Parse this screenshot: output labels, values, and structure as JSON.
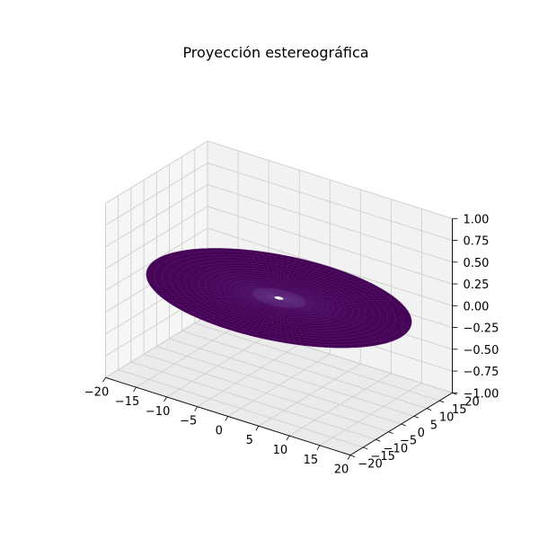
{
  "chart_data": {
    "type": "surface3d",
    "title": "Proyección estereográfica",
    "xlabel": "",
    "ylabel": "",
    "zlabel": "",
    "xlim": [
      -20,
      20
    ],
    "ylim": [
      -20,
      20
    ],
    "zlim": [
      -1,
      1
    ],
    "x_ticks": [
      -20,
      -15,
      -10,
      -5,
      0,
      5,
      10,
      15,
      20
    ],
    "y_ticks": [
      -20,
      -15,
      -10,
      -5,
      0,
      5,
      10,
      15,
      20
    ],
    "z_ticks": [
      -1.0,
      -0.75,
      -0.5,
      -0.25,
      0.0,
      0.25,
      0.5,
      0.75,
      1.0
    ],
    "x_tick_labels": [
      "−20",
      "−15",
      "−10",
      "−5",
      "0",
      "5",
      "10",
      "15",
      "20"
    ],
    "y_tick_labels": [
      "−20",
      "−15",
      "−10",
      "−5",
      "0",
      "5",
      "10",
      "15",
      "20"
    ],
    "z_tick_labels": [
      "−1.00",
      "−0.75",
      "−0.50",
      "−0.25",
      "0.00",
      "0.25",
      "0.50",
      "0.75",
      "1.00"
    ],
    "surface": {
      "shape": "disk",
      "z": 0,
      "outer_radius": 20,
      "inner_radius": 0.3,
      "color": "#440154"
    },
    "grid": true,
    "pane_color": "#f2f2f2"
  }
}
